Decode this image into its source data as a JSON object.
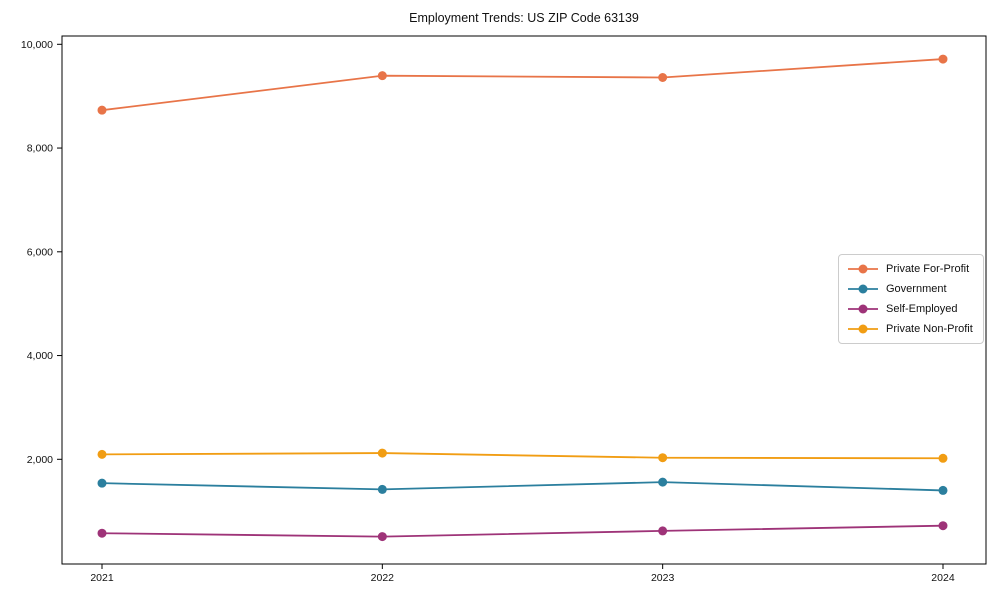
{
  "chart_data": {
    "type": "line",
    "title": "Employment Trends: US ZIP Code 63139",
    "x": [
      "2021",
      "2022",
      "2023",
      "2024"
    ],
    "series": [
      {
        "name": "Private For-Profit",
        "color": "#e87448",
        "values": [
          8730,
          9395,
          9360,
          9715
        ]
      },
      {
        "name": "Government",
        "color": "#2b7f9e",
        "values": [
          1540,
          1420,
          1560,
          1400
        ]
      },
      {
        "name": "Self-Employed",
        "color": "#9e3378",
        "values": [
          575,
          510,
          620,
          720
        ]
      },
      {
        "name": "Private Non-Profit",
        "color": "#f19d13",
        "values": [
          2095,
          2120,
          2030,
          2020
        ]
      }
    ],
    "xlabel": "",
    "ylabel": "",
    "y_ticks": [
      2000,
      4000,
      6000,
      8000,
      10000
    ],
    "y_tick_labels": [
      "2,000",
      "4,000",
      "6,000",
      "8,000",
      "10,000"
    ],
    "ylim": [
      -18,
      10160
    ],
    "grid": false,
    "marker": "circle",
    "legend_position": "center-right",
    "axis_color": "#000000",
    "text_color": "#111111"
  }
}
